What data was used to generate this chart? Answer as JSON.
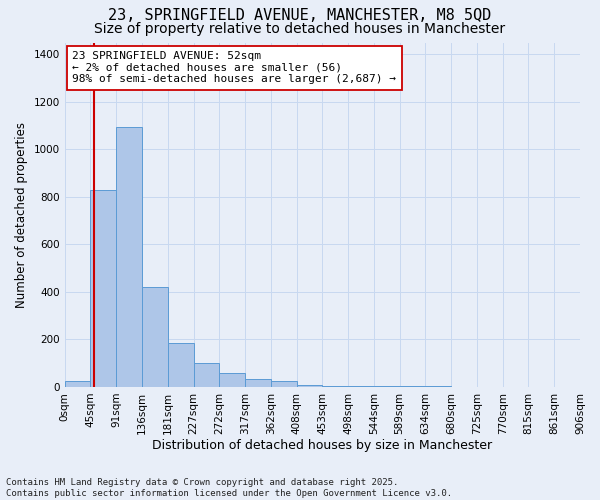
{
  "title": "23, SPRINGFIELD AVENUE, MANCHESTER, M8 5QD",
  "subtitle": "Size of property relative to detached houses in Manchester",
  "xlabel": "Distribution of detached houses by size in Manchester",
  "ylabel": "Number of detached properties",
  "bar_values": [
    25,
    830,
    1095,
    420,
    185,
    100,
    60,
    35,
    25,
    10,
    5,
    5,
    3,
    2,
    2,
    1,
    1,
    1,
    0,
    0
  ],
  "bin_labels": [
    "0sqm",
    "45sqm",
    "91sqm",
    "136sqm",
    "181sqm",
    "227sqm",
    "272sqm",
    "317sqm",
    "362sqm",
    "408sqm",
    "453sqm",
    "498sqm",
    "544sqm",
    "589sqm",
    "634sqm",
    "680sqm",
    "725sqm",
    "770sqm",
    "815sqm",
    "861sqm",
    "906sqm"
  ],
  "bar_color": "#aec6e8",
  "bar_edge_color": "#5b9bd5",
  "grid_color": "#c8d8f0",
  "background_color": "#e8eef8",
  "vline_x": 52,
  "vline_color": "#cc0000",
  "annotation_line1": "23 SPRINGFIELD AVENUE: 52sqm",
  "annotation_line2": "← 2% of detached houses are smaller (56)",
  "annotation_line3": "98% of semi-detached houses are larger (2,687) →",
  "annotation_box_color": "#ffffff",
  "annotation_edge_color": "#cc0000",
  "ylim": [
    0,
    1450
  ],
  "yticks": [
    0,
    200,
    400,
    600,
    800,
    1000,
    1200,
    1400
  ],
  "footnote": "Contains HM Land Registry data © Crown copyright and database right 2025.\nContains public sector information licensed under the Open Government Licence v3.0.",
  "title_fontsize": 11,
  "subtitle_fontsize": 10,
  "xlabel_fontsize": 9,
  "ylabel_fontsize": 8.5,
  "tick_fontsize": 7.5,
  "annot_fontsize": 8,
  "footnote_fontsize": 6.5
}
